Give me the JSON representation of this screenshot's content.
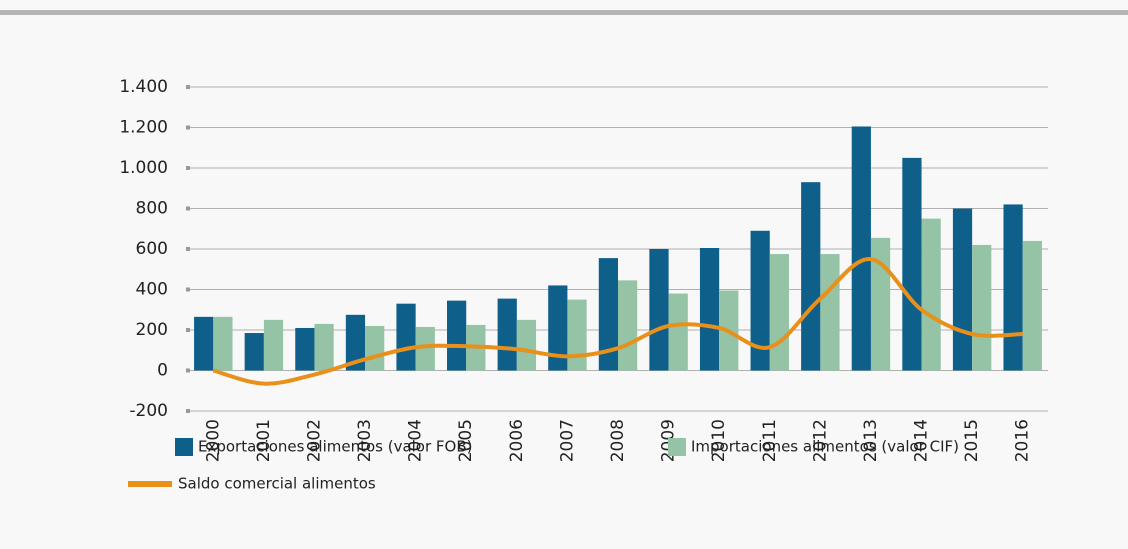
{
  "chart_data": {
    "type": "bar",
    "categories": [
      "2000",
      "2001",
      "2002",
      "2003",
      "2004",
      "2005",
      "2006",
      "2007",
      "2008",
      "2009",
      "2010",
      "2011",
      "2012",
      "2013",
      "2014",
      "2015",
      "2016"
    ],
    "series": [
      {
        "name": "Exportaciones alimentos (valor FOB)",
        "color": "#0e5f8a",
        "type": "bar",
        "values": [
          265,
          185,
          210,
          275,
          330,
          345,
          355,
          420,
          555,
          600,
          605,
          690,
          930,
          1205,
          1050,
          800,
          820
        ]
      },
      {
        "name": "Importaciones alimentos (valor CIF)",
        "color": "#94c3a6",
        "type": "bar",
        "values": [
          265,
          250,
          230,
          220,
          215,
          225,
          250,
          350,
          445,
          380,
          395,
          575,
          575,
          655,
          750,
          620,
          640
        ]
      },
      {
        "name": "Saldo comercial alimentos",
        "color": "#e8901a",
        "type": "line",
        "values": [
          0,
          -65,
          -20,
          55,
          115,
          120,
          105,
          70,
          110,
          220,
          210,
          115,
          355,
          550,
          300,
          180,
          180
        ]
      }
    ],
    "ylim": [
      -200,
      1400
    ],
    "yticks": [
      -200,
      0,
      200,
      400,
      600,
      800,
      {
        "value": 1000,
        "label": "1.000"
      },
      {
        "value": 1200,
        "label": "1.200"
      },
      {
        "value": 1400,
        "label": "1.400"
      }
    ],
    "grid": true
  }
}
